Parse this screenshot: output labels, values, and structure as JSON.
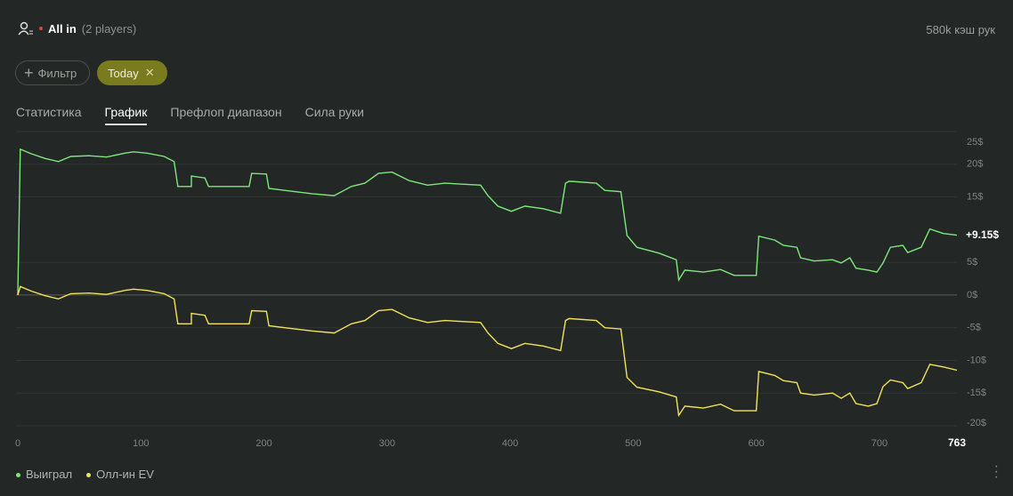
{
  "header": {
    "mode": "All in",
    "players": "(2 players)",
    "hands": "580k кэш рук"
  },
  "filters": {
    "add": "Фильтр",
    "chip": "Today"
  },
  "tabs": [
    "Статистика",
    "График",
    "Префлоп диапазон",
    "Сила руки"
  ],
  "chart_data": {
    "type": "line",
    "x": [
      0,
      2,
      11,
      22,
      33,
      43,
      58,
      72,
      87,
      94,
      105,
      119,
      127,
      130,
      141,
      141,
      152,
      155,
      188,
      190,
      202,
      204,
      217,
      239,
      257,
      271,
      282,
      293,
      304,
      318,
      333,
      347,
      376,
      382,
      390,
      401,
      412,
      427,
      441,
      445,
      448,
      470,
      477,
      490,
      495,
      503,
      521,
      535,
      537,
      542,
      557,
      571,
      582,
      600,
      602,
      615,
      622,
      633,
      636,
      647,
      662,
      669,
      676,
      681,
      691,
      698,
      703,
      709,
      719,
      723,
      734,
      741,
      752,
      763
    ],
    "series": [
      {
        "name": "Выиграл",
        "color": "#7ee87b",
        "end_label": "+9.15$",
        "values": [
          0,
          22.3,
          21.6,
          20.9,
          20.4,
          21.2,
          21.3,
          21.1,
          21.7,
          21.9,
          21.7,
          21.2,
          20.4,
          16.6,
          16.6,
          18.2,
          17.9,
          16.6,
          16.6,
          18.6,
          18.5,
          16.3,
          16.0,
          15.5,
          15.2,
          16.6,
          17.1,
          18.6,
          18.8,
          17.5,
          16.8,
          17.1,
          16.8,
          15.2,
          13.6,
          12.8,
          13.6,
          13.2,
          12.5,
          17.1,
          17.4,
          17.1,
          16.0,
          15.8,
          9.1,
          7.3,
          6.4,
          5.4,
          2.3,
          3.8,
          3.5,
          3.9,
          3.0,
          3.0,
          9.0,
          8.4,
          7.6,
          7.3,
          5.7,
          5.2,
          5.4,
          4.9,
          5.7,
          4.1,
          3.8,
          3.5,
          4.9,
          7.3,
          7.6,
          6.5,
          7.3,
          10.1,
          9.4,
          9.15
        ]
      },
      {
        "name": "Олл-ин EV",
        "color": "#f2e35b",
        "values": [
          0,
          1.3,
          0.6,
          -0.1,
          -0.6,
          0.2,
          0.3,
          0.1,
          0.7,
          0.9,
          0.7,
          0.2,
          -0.6,
          -4.4,
          -4.4,
          -2.8,
          -3.1,
          -4.4,
          -4.4,
          -2.4,
          -2.5,
          -4.7,
          -5.0,
          -5.5,
          -5.8,
          -4.4,
          -3.9,
          -2.4,
          -2.2,
          -3.5,
          -4.2,
          -3.9,
          -4.2,
          -5.8,
          -7.4,
          -8.2,
          -7.4,
          -7.8,
          -8.5,
          -3.9,
          -3.6,
          -3.9,
          -5.0,
          -5.2,
          -12.6,
          -14.1,
          -14.8,
          -15.6,
          -18.4,
          -17.0,
          -17.3,
          -16.7,
          -17.7,
          -17.7,
          -11.7,
          -12.3,
          -13.1,
          -13.4,
          -15.0,
          -15.3,
          -15.0,
          -15.8,
          -15.0,
          -16.6,
          -17.0,
          -16.6,
          -14.0,
          -13.0,
          -13.4,
          -14.3,
          -13.4,
          -10.6,
          -11.0,
          -11.5
        ]
      }
    ],
    "xlim": [
      0,
      763
    ],
    "xticks": [
      0,
      100,
      200,
      300,
      400,
      500,
      600,
      700
    ],
    "ylim": [
      -20,
      25
    ],
    "yticks": [
      {
        "value": 25,
        "label": "25$"
      },
      {
        "value": 20,
        "label": "20$"
      },
      {
        "value": 15,
        "label": "15$"
      },
      {
        "value": 5,
        "label": "5$"
      },
      {
        "value": 0,
        "label": "0$"
      },
      {
        "value": -5,
        "label": "-5$"
      },
      {
        "value": -10,
        "label": "-10$"
      },
      {
        "value": -15,
        "label": "-15$"
      },
      {
        "value": -20,
        "label": "-20$"
      }
    ],
    "grid": true
  }
}
